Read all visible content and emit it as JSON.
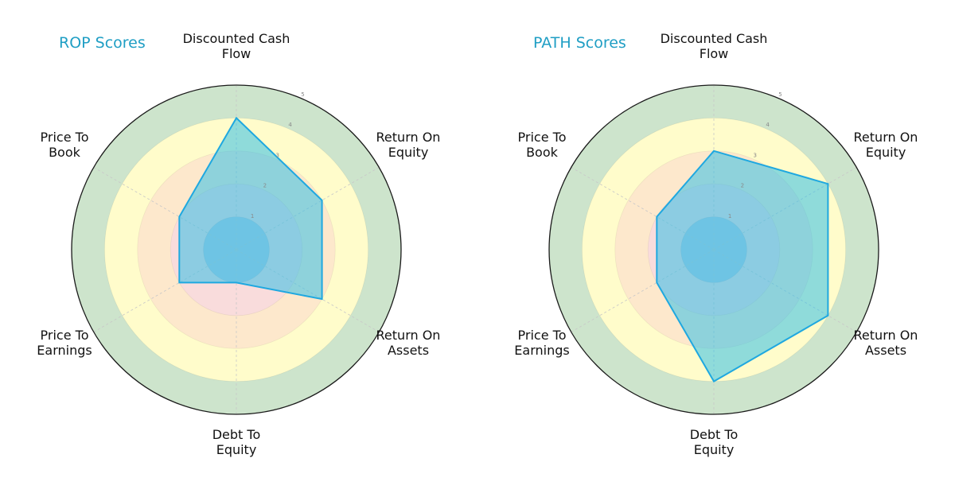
{
  "chart_data": [
    {
      "type": "radar",
      "title": "ROP Scores",
      "categories": [
        "Discounted Cash Flow",
        "Return On Equity",
        "Return On Assets",
        "Debt To Equity",
        "Price To Earnings",
        "Price To Book"
      ],
      "values": [
        4,
        3,
        3,
        1,
        2,
        2
      ],
      "rlim": [
        0,
        5
      ],
      "rticks": [
        1,
        2,
        3,
        4,
        5
      ]
    },
    {
      "type": "radar",
      "title": "PATH Scores",
      "categories": [
        "Discounted Cash Flow",
        "Return On Equity",
        "Return On Assets",
        "Debt To Equity",
        "Price To Earnings",
        "Price To Book"
      ],
      "values": [
        3,
        4,
        4,
        4,
        2,
        2
      ],
      "rlim": [
        0,
        5
      ],
      "rticks": [
        1,
        2,
        3,
        4,
        5
      ]
    }
  ],
  "charts": [
    {
      "title": "ROP Scores",
      "labels": [
        [
          "Discounted Cash",
          "Flow"
        ],
        [
          "Return On",
          "Equity"
        ],
        [
          "Return On",
          "Assets"
        ],
        [
          "Debt To",
          "Equity"
        ],
        [
          "Price To",
          "Earnings"
        ],
        [
          "Price To",
          "Book"
        ]
      ]
    },
    {
      "title": "PATH Scores",
      "labels": [
        [
          "Discounted Cash",
          "Flow"
        ],
        [
          "Return On",
          "Equity"
        ],
        [
          "Return On",
          "Assets"
        ],
        [
          "Debt To",
          "Equity"
        ],
        [
          "Price To",
          "Earnings"
        ],
        [
          "Price To",
          "Book"
        ]
      ]
    }
  ],
  "colors": {
    "band_0_1": "#b7c9e0",
    "band_1_2": "#f9dcdc",
    "band_2_3": "#fde8cc",
    "band_3_4": "#fffccb",
    "band_4_5": "#cde4cc",
    "series_fill": "#33bfe8",
    "series_stroke": "#1fa8e0",
    "title": "#1f9ec4"
  }
}
